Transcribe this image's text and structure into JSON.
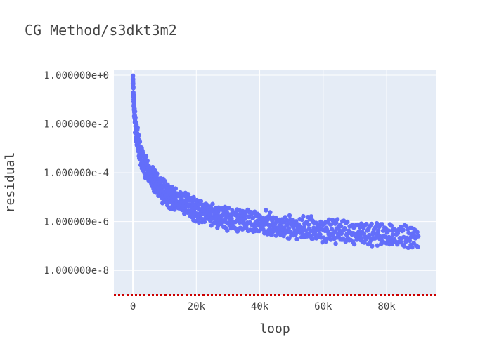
{
  "chart_data": {
    "type": "scatter",
    "title": "CG Method/s3dkt3m2",
    "xlabel": "loop",
    "ylabel": "residual",
    "xlim": [
      -6000,
      95500
    ],
    "ylog": true,
    "ylim_log10": [
      -9.0,
      0.2
    ],
    "xticks": [
      0,
      20000,
      40000,
      60000,
      80000
    ],
    "xtick_labels": [
      "0",
      "20k",
      "40k",
      "60k",
      "80k"
    ],
    "yticks_log10": [
      0,
      -2,
      -4,
      -6,
      -8
    ],
    "ytick_labels": [
      "1.000000e+0",
      "1.000000e-2",
      "1.000000e-4",
      "1.000000e-6",
      "1.000000e-8"
    ],
    "threshold_log10": -9.0,
    "grid": true,
    "marker_color": "#636efa",
    "threshold_color": "#cc0000",
    "plot_bg": "#e5ecf6",
    "trend": [
      {
        "x": 0,
        "y_log10": -0.2
      },
      {
        "x": 200,
        "y_log10": -0.9
      },
      {
        "x": 500,
        "y_log10": -1.6
      },
      {
        "x": 1000,
        "y_log10": -2.3
      },
      {
        "x": 2000,
        "y_log10": -3.0
      },
      {
        "x": 3000,
        "y_log10": -3.5
      },
      {
        "x": 5000,
        "y_log10": -4.0
      },
      {
        "x": 8000,
        "y_log10": -4.6
      },
      {
        "x": 12000,
        "y_log10": -5.0
      },
      {
        "x": 16000,
        "y_log10": -5.25
      },
      {
        "x": 20000,
        "y_log10": -5.5
      },
      {
        "x": 30000,
        "y_log10": -5.9
      },
      {
        "x": 40000,
        "y_log10": -6.05
      },
      {
        "x": 50000,
        "y_log10": -6.25
      },
      {
        "x": 60000,
        "y_log10": -6.35
      },
      {
        "x": 70000,
        "y_log10": -6.45
      },
      {
        "x": 80000,
        "y_log10": -6.55
      },
      {
        "x": 90000,
        "y_log10": -6.65
      }
    ],
    "spread_log10": 0.45,
    "x_max": 90000,
    "point_count": 900
  }
}
